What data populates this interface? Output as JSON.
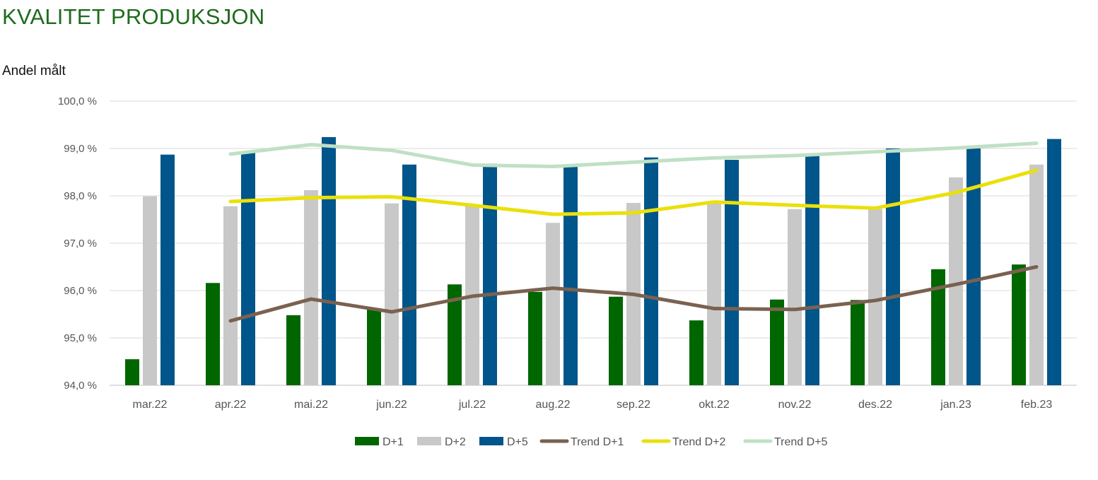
{
  "header": {
    "title": "KVALITET PRODUKSJON",
    "subtitle": "Andel målt"
  },
  "chart_data": {
    "type": "bar",
    "title": "KVALITET PRODUKSJON",
    "ylabel": "Andel målt",
    "xlabel": "",
    "ylim": [
      94.0,
      100.0
    ],
    "y_ticks": [
      "94,0 %",
      "95,0 %",
      "96,0 %",
      "97,0 %",
      "98,0 %",
      "99,0 %",
      "100,0 %"
    ],
    "grid": "horizontal",
    "legend_position": "bottom",
    "categories": [
      "mar.22",
      "apr.22",
      "mai.22",
      "jun.22",
      "jul.22",
      "aug.22",
      "sep.22",
      "okt.22",
      "nov.22",
      "des.22",
      "jan.23",
      "feb.23"
    ],
    "series": [
      {
        "name": "D+1",
        "kind": "bar",
        "color": "#006600",
        "values": [
          94.55,
          96.16,
          95.48,
          95.62,
          96.13,
          95.97,
          95.87,
          95.37,
          95.81,
          95.8,
          96.45,
          96.55
        ]
      },
      {
        "name": "D+2",
        "kind": "bar",
        "color": "#c8c8c8",
        "values": [
          97.99,
          97.78,
          98.12,
          97.84,
          97.79,
          97.43,
          97.85,
          97.86,
          97.72,
          97.72,
          98.39,
          98.66
        ]
      },
      {
        "name": "D+5",
        "kind": "bar",
        "color": "#00558a",
        "values": [
          98.87,
          98.91,
          99.24,
          98.66,
          98.68,
          98.62,
          98.81,
          98.76,
          98.88,
          99.0,
          99.0,
          99.2
        ]
      },
      {
        "name": "Trend D+1",
        "kind": "line",
        "color": "#7a6150",
        "values": [
          null,
          95.36,
          95.82,
          95.55,
          95.88,
          96.05,
          95.92,
          95.62,
          95.6,
          95.79,
          96.13,
          96.5
        ]
      },
      {
        "name": "Trend D+2",
        "kind": "line",
        "color": "#eae00a",
        "values": [
          null,
          97.88,
          97.96,
          97.98,
          97.8,
          97.61,
          97.64,
          97.87,
          97.8,
          97.74,
          98.07,
          98.54
        ]
      },
      {
        "name": "Trend D+5",
        "kind": "line",
        "color": "#bfe0c4",
        "values": [
          null,
          98.88,
          99.08,
          98.96,
          98.65,
          98.62,
          98.71,
          98.8,
          98.85,
          98.93,
          99.01,
          99.11
        ]
      }
    ]
  }
}
